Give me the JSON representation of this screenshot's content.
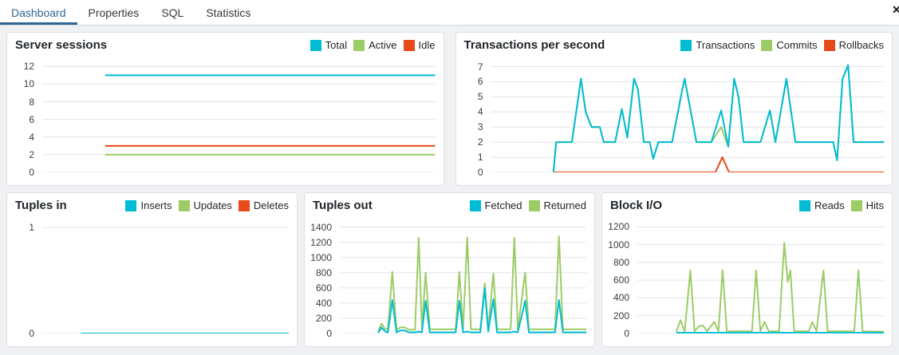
{
  "tabs": {
    "items": [
      {
        "label": "Dashboard",
        "active": true
      },
      {
        "label": "Properties",
        "active": false
      },
      {
        "label": "SQL",
        "active": false
      },
      {
        "label": "Statistics",
        "active": false
      }
    ],
    "overflow_icon": "✕"
  },
  "colors": {
    "accent": "#326690",
    "series_cyan": "#00BCD4",
    "series_green": "#9CCC65",
    "series_orange": "#E64A19",
    "gridline": "#e2e4ed"
  },
  "chart_data": [
    {
      "id": "server-sessions",
      "type": "line",
      "title": "Server sessions",
      "xlabel": "",
      "ylabel": "",
      "ylim": [
        0,
        12.75
      ],
      "yticks": [
        0,
        2,
        4,
        6,
        8,
        10,
        12
      ],
      "grid": true,
      "legend_position": "top-right",
      "x_unit": "percent-of-time-axis",
      "series": [
        {
          "name": "Total",
          "color": "#00BCD4",
          "points": [
            [
              16,
              11
            ],
            [
              100,
              11
            ]
          ]
        },
        {
          "name": "Active",
          "color": "#9CCC65",
          "points": [
            [
              16,
              2
            ],
            [
              100,
              2
            ]
          ]
        },
        {
          "name": "Idle",
          "color": "#E64A19",
          "points": [
            [
              16,
              3
            ],
            [
              100,
              3
            ]
          ]
        }
      ]
    },
    {
      "id": "transactions-per-second",
      "type": "line",
      "title": "Transactions per second",
      "xlabel": "",
      "ylabel": "",
      "ylim": [
        0,
        7.45
      ],
      "yticks": [
        0,
        1,
        2,
        3,
        4,
        5,
        6,
        7
      ],
      "grid": true,
      "legend_position": "top-right",
      "x_unit": "percent-of-time-axis",
      "series": [
        {
          "name": "Transactions",
          "color": "#00BCD4",
          "points": [
            [
              15.8,
              0
            ],
            [
              16.5,
              2
            ],
            [
              20.5,
              2
            ],
            [
              22.8,
              6.2
            ],
            [
              24,
              4
            ],
            [
              25.5,
              3
            ],
            [
              27.6,
              3
            ],
            [
              28.6,
              2
            ],
            [
              31.5,
              2
            ],
            [
              33.2,
              4.2
            ],
            [
              34.6,
              2.3
            ],
            [
              36.3,
              6.2
            ],
            [
              37.3,
              5.5
            ],
            [
              38.8,
              2
            ],
            [
              40.3,
              2
            ],
            [
              41.2,
              0.9
            ],
            [
              42.5,
              2
            ],
            [
              46,
              2
            ],
            [
              47.5,
              4
            ],
            [
              48.6,
              5.5
            ],
            [
              49.2,
              6.2
            ],
            [
              52.2,
              2
            ],
            [
              56,
              2
            ],
            [
              58.5,
              4.1
            ],
            [
              60.3,
              1.7
            ],
            [
              61.8,
              6.2
            ],
            [
              62.9,
              5
            ],
            [
              64.2,
              2
            ],
            [
              68.5,
              2
            ],
            [
              70.9,
              4.1
            ],
            [
              72.3,
              2
            ],
            [
              75.1,
              6.2
            ],
            [
              76.3,
              4
            ],
            [
              77.4,
              2
            ],
            [
              87,
              2
            ],
            [
              88,
              0.8
            ],
            [
              89.4,
              6.2
            ],
            [
              90.8,
              7.1
            ],
            [
              92.2,
              2
            ],
            [
              100,
              2
            ]
          ]
        },
        {
          "name": "Commits",
          "color": "#9CCC65",
          "points": [
            [
              15.8,
              0
            ],
            [
              16.5,
              2
            ],
            [
              20.5,
              2
            ],
            [
              22.8,
              6.2
            ],
            [
              24,
              4
            ],
            [
              25.5,
              3
            ],
            [
              27.6,
              3
            ],
            [
              28.6,
              2
            ],
            [
              31.5,
              2
            ],
            [
              33.2,
              4.2
            ],
            [
              34.6,
              2.3
            ],
            [
              36.3,
              6.2
            ],
            [
              37.3,
              5.5
            ],
            [
              38.8,
              2
            ],
            [
              40.3,
              2
            ],
            [
              41.2,
              0.9
            ],
            [
              42.5,
              2
            ],
            [
              46,
              2
            ],
            [
              47.5,
              4
            ],
            [
              48.6,
              5.5
            ],
            [
              49.2,
              6.2
            ],
            [
              52.2,
              2
            ],
            [
              56,
              2
            ],
            [
              58.5,
              3
            ],
            [
              60.3,
              1.7
            ],
            [
              61.8,
              6.2
            ],
            [
              62.9,
              5
            ],
            [
              64.2,
              2
            ],
            [
              68.5,
              2
            ],
            [
              70.9,
              4.1
            ],
            [
              72.3,
              2
            ],
            [
              75.1,
              6.2
            ],
            [
              76.3,
              4
            ],
            [
              77.4,
              2
            ],
            [
              87,
              2
            ],
            [
              88,
              0.8
            ],
            [
              89.4,
              6.2
            ],
            [
              90.8,
              7.1
            ],
            [
              92.2,
              2
            ],
            [
              100,
              2
            ]
          ]
        },
        {
          "name": "Rollbacks",
          "color": "#E64A19",
          "points": [
            [
              15.8,
              0
            ],
            [
              57,
              0
            ],
            [
              58.8,
              1
            ],
            [
              60.5,
              0
            ],
            [
              100,
              0
            ]
          ]
        }
      ]
    },
    {
      "id": "tuples-in",
      "type": "line",
      "title": "Tuples in",
      "xlabel": "",
      "ylabel": "",
      "ylim": [
        0,
        1.07
      ],
      "yticks": [
        0,
        1
      ],
      "grid": true,
      "legend_position": "top-right",
      "x_unit": "percent-of-time-axis",
      "series": [
        {
          "name": "Inserts",
          "color": "#00BCD4",
          "points": [
            [
              15.7,
              0
            ],
            [
              100,
              0
            ]
          ]
        },
        {
          "name": "Updates",
          "color": "#9CCC65",
          "points": [
            [
              15.7,
              0
            ],
            [
              100,
              0
            ]
          ]
        },
        {
          "name": "Deletes",
          "color": "#E64A19",
          "points": [
            [
              15.7,
              0
            ],
            [
              100,
              0
            ]
          ]
        }
      ]
    },
    {
      "id": "tuples-out",
      "type": "line",
      "title": "Tuples out",
      "xlabel": "",
      "ylabel": "",
      "ylim": [
        0,
        1490
      ],
      "yticks": [
        0,
        200,
        400,
        600,
        800,
        1000,
        1200,
        1400
      ],
      "grid": true,
      "legend_position": "top-right",
      "x_unit": "percent-of-time-axis",
      "series": [
        {
          "name": "Fetched",
          "color": "#00BCD4",
          "points": [
            [
              15.6,
              10
            ],
            [
              16.9,
              80
            ],
            [
              18.4,
              25
            ],
            [
              19.5,
              15
            ],
            [
              21.3,
              440
            ],
            [
              23,
              15
            ],
            [
              24.6,
              40
            ],
            [
              26.3,
              40
            ],
            [
              28,
              15
            ],
            [
              30.5,
              15
            ],
            [
              32,
              25
            ],
            [
              33.3,
              15
            ],
            [
              34.8,
              430
            ],
            [
              36.5,
              15
            ],
            [
              47,
              15
            ],
            [
              48.5,
              430
            ],
            [
              50,
              15
            ],
            [
              51.7,
              25
            ],
            [
              53.2,
              15
            ],
            [
              57,
              15
            ],
            [
              58.8,
              600
            ],
            [
              60.2,
              25
            ],
            [
              62.3,
              450
            ],
            [
              63.8,
              15
            ],
            [
              69.3,
              15
            ],
            [
              70.8,
              25
            ],
            [
              72.2,
              15
            ],
            [
              75.2,
              430
            ],
            [
              76.7,
              15
            ],
            [
              87.3,
              15
            ],
            [
              88.9,
              440
            ],
            [
              90.5,
              15
            ],
            [
              100,
              15
            ]
          ]
        },
        {
          "name": "Returned",
          "color": "#9CCC65",
          "points": [
            [
              15.6,
              30
            ],
            [
              16.9,
              130
            ],
            [
              18.4,
              60
            ],
            [
              19.5,
              50
            ],
            [
              21.3,
              810
            ],
            [
              23,
              50
            ],
            [
              24.6,
              80
            ],
            [
              26.3,
              80
            ],
            [
              28,
              50
            ],
            [
              30.5,
              50
            ],
            [
              32,
              1260
            ],
            [
              33.3,
              55
            ],
            [
              34.8,
              800
            ],
            [
              36.5,
              55
            ],
            [
              47,
              55
            ],
            [
              48.5,
              810
            ],
            [
              50,
              55
            ],
            [
              51.7,
              1260
            ],
            [
              53.2,
              55
            ],
            [
              57,
              55
            ],
            [
              58.8,
              660
            ],
            [
              60.2,
              55
            ],
            [
              62.3,
              790
            ],
            [
              63.8,
              55
            ],
            [
              69.3,
              55
            ],
            [
              70.8,
              1260
            ],
            [
              72.2,
              55
            ],
            [
              75.2,
              800
            ],
            [
              76.7,
              55
            ],
            [
              87.3,
              55
            ],
            [
              88.9,
              1280
            ],
            [
              90.5,
              55
            ],
            [
              100,
              55
            ]
          ]
        }
      ]
    },
    {
      "id": "block-io",
      "type": "line",
      "title": "Block I/O",
      "xlabel": "",
      "ylabel": "",
      "ylim": [
        0,
        1275
      ],
      "yticks": [
        0,
        200,
        400,
        600,
        800,
        1000,
        1200
      ],
      "grid": true,
      "legend_position": "top-right",
      "x_unit": "percent-of-time-axis",
      "series": [
        {
          "name": "Reads",
          "color": "#00BCD4",
          "points": [
            [
              15.8,
              8
            ],
            [
              100,
              8
            ]
          ]
        },
        {
          "name": "Hits",
          "color": "#9CCC65",
          "points": [
            [
              15.8,
              20
            ],
            [
              17.5,
              150
            ],
            [
              19.2,
              20
            ],
            [
              21.5,
              710
            ],
            [
              23.2,
              25
            ],
            [
              24.9,
              80
            ],
            [
              26.6,
              90
            ],
            [
              28.3,
              25
            ],
            [
              31.2,
              130
            ],
            [
              32.9,
              25
            ],
            [
              34.6,
              710
            ],
            [
              36.3,
              25
            ],
            [
              46.5,
              25
            ],
            [
              48.2,
              710
            ],
            [
              49.9,
              25
            ],
            [
              51.6,
              130
            ],
            [
              53.3,
              25
            ],
            [
              57.5,
              25
            ],
            [
              59.6,
              1020
            ],
            [
              61,
              580
            ],
            [
              62.1,
              710
            ],
            [
              63.6,
              25
            ],
            [
              69.5,
              25
            ],
            [
              71,
              130
            ],
            [
              72.7,
              25
            ],
            [
              75.5,
              710
            ],
            [
              77.2,
              25
            ],
            [
              88,
              25
            ],
            [
              89.7,
              710
            ],
            [
              91.4,
              25
            ],
            [
              100,
              20
            ]
          ]
        }
      ]
    }
  ]
}
